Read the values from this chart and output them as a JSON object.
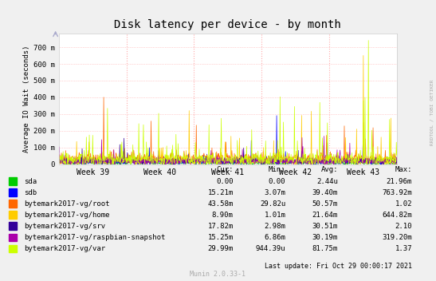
{
  "title": "Disk latency per device - by month",
  "ylabel": "Average IO Wait (seconds)",
  "background_color": "#f0f0f0",
  "plot_bg_color": "#ffffff",
  "grid_color": "#ffaaaa",
  "week_labels": [
    "Week 39",
    "Week 40",
    "Week 41",
    "Week 42",
    "Week 43"
  ],
  "ytick_labels": [
    "0",
    "100 m",
    "200 m",
    "300 m",
    "400 m",
    "500 m",
    "600 m",
    "700 m"
  ],
  "ytick_values": [
    0,
    0.1,
    0.2,
    0.3,
    0.4,
    0.5,
    0.6,
    0.7
  ],
  "ylim": [
    0,
    0.78
  ],
  "series": [
    {
      "name": "sda",
      "color": "#00cc00",
      "lw": 0.5
    },
    {
      "name": "sdb",
      "color": "#0000ff",
      "lw": 0.5
    },
    {
      "name": "bytemark2017-vg/root",
      "color": "#ff6600",
      "lw": 0.5
    },
    {
      "name": "bytemark2017-vg/home",
      "color": "#ffcc00",
      "lw": 0.5
    },
    {
      "name": "bytemark2017-vg/srv",
      "color": "#330099",
      "lw": 0.5
    },
    {
      "name": "bytemark2017-vg/raspbian-snapshot",
      "color": "#aa00aa",
      "lw": 0.5
    },
    {
      "name": "bytemark2017-vg/var",
      "color": "#ccff00",
      "lw": 0.5
    }
  ],
  "legend_cur": [
    "0.00",
    "15.21m",
    "43.58m",
    "8.90m",
    "17.82m",
    "15.25m",
    "29.99m"
  ],
  "legend_min": [
    "0.00",
    "3.07m",
    "29.82u",
    "1.01m",
    "2.98m",
    "6.86m",
    "944.39u"
  ],
  "legend_avg": [
    "2.44u",
    "39.40m",
    "50.57m",
    "21.64m",
    "30.51m",
    "30.19m",
    "81.75m"
  ],
  "legend_max": [
    "21.96m",
    "763.92m",
    "1.02",
    "644.82m",
    "2.10",
    "319.20m",
    "1.37"
  ],
  "watermark": "RRDTOOL / TOBI OETIKER",
  "footer": "Last update: Fri Oct 29 00:00:17 2021",
  "munin_version": "Munin 2.0.33-1",
  "n_points": 800,
  "seed": 42
}
